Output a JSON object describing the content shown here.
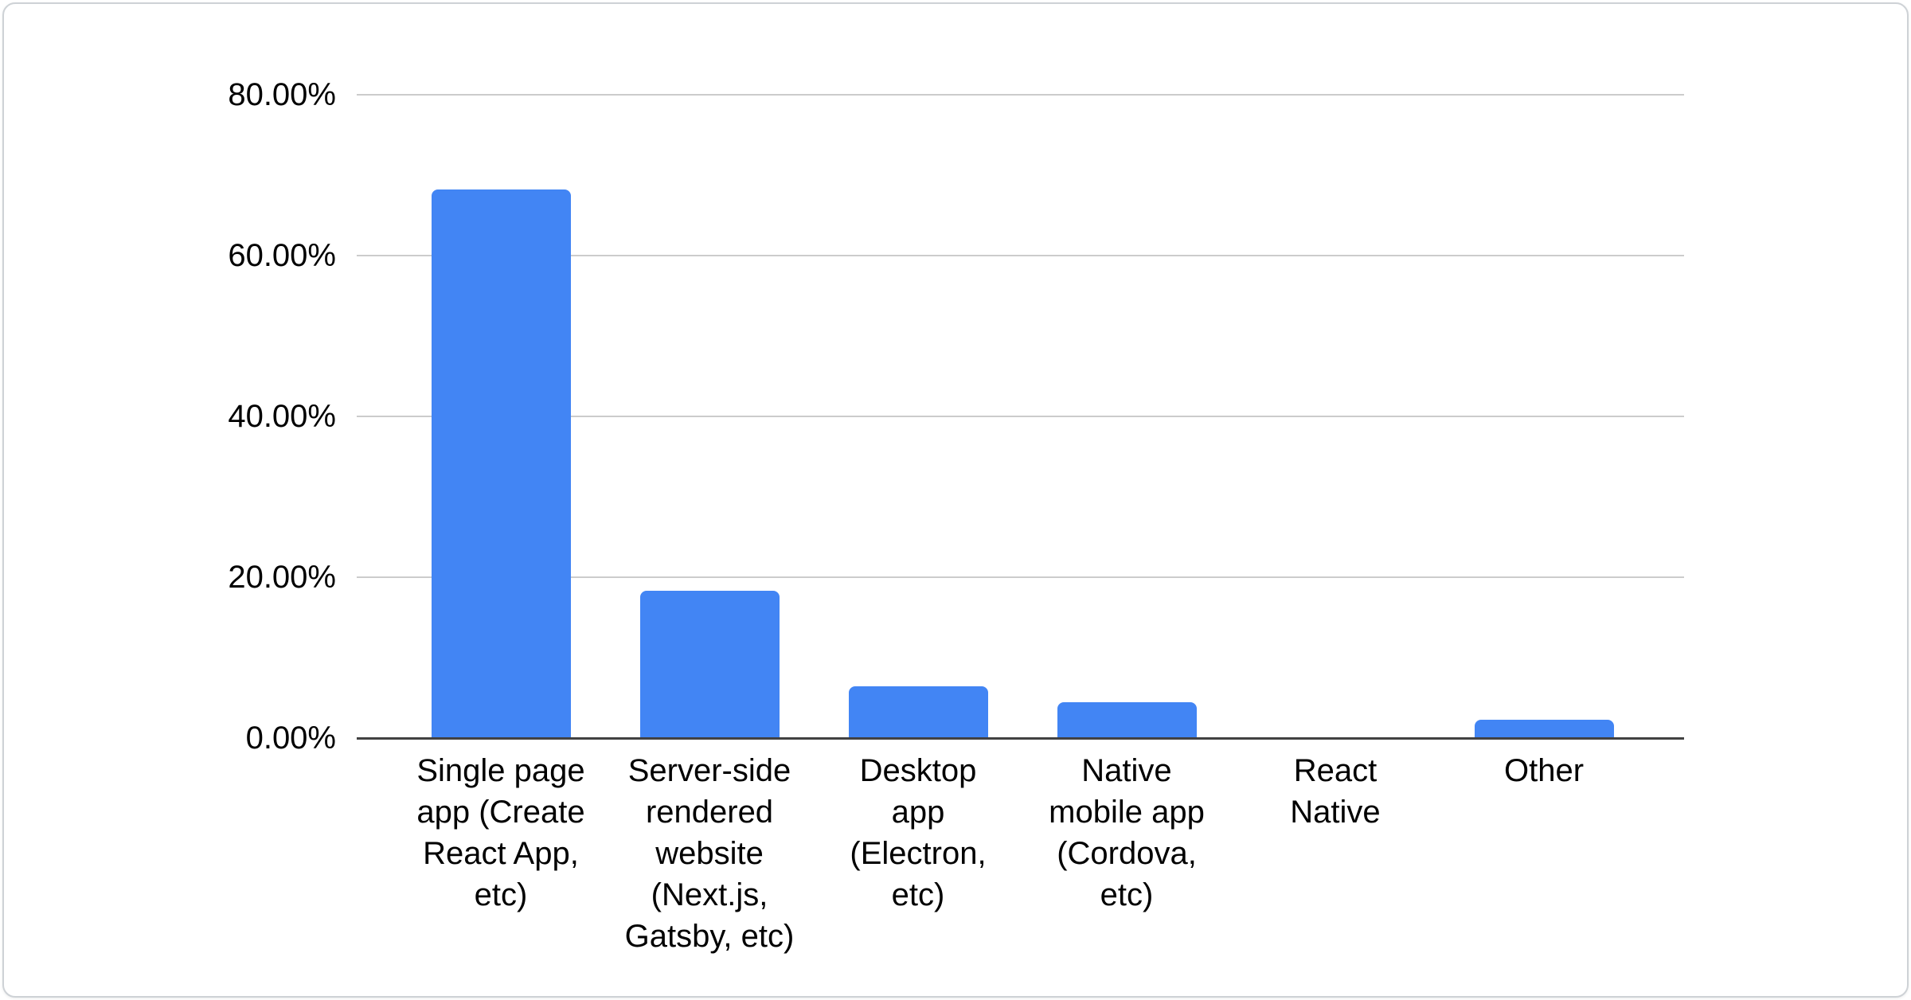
{
  "chart_data": {
    "type": "bar",
    "title": "",
    "categories": [
      "Single page app (Create React App, etc)",
      "Server-side rendered website (Next.js, Gatsby, etc)",
      "Desktop app (Electron, etc)",
      "Native mobile app (Cordova, etc)",
      "React Native",
      "Other"
    ],
    "categories_wrapped": [
      "Single page\napp (Create\nReact App,\netc)",
      "Server-side\nrendered\nwebsite\n(Next.js,\nGatsby, etc)",
      "Desktop\napp\n(Electron,\netc)",
      "Native\nmobile app\n(Cordova,\netc)",
      "React\nNative",
      "Other"
    ],
    "values": [
      68.2,
      18.3,
      6.4,
      4.5,
      0,
      2.3
    ],
    "value_unit": "%",
    "xlabel": "",
    "ylabel": "",
    "y_ticks": [
      "80.00%",
      "60.00%",
      "40.00%",
      "20.00%",
      "0.00%"
    ],
    "y_tick_values": [
      80,
      60,
      40,
      20,
      0
    ],
    "ylim": [
      0,
      80
    ],
    "grid": true,
    "legend": "none",
    "bar_color": "#4285f4"
  },
  "colors": {
    "bar": "#4285f4",
    "gridline": "#cccccc",
    "axis_line": "#424242",
    "label_text": "#000000",
    "card_border": "#ced2d6",
    "card_bg": "#ffffff",
    "page_bg": "#ffffff"
  }
}
